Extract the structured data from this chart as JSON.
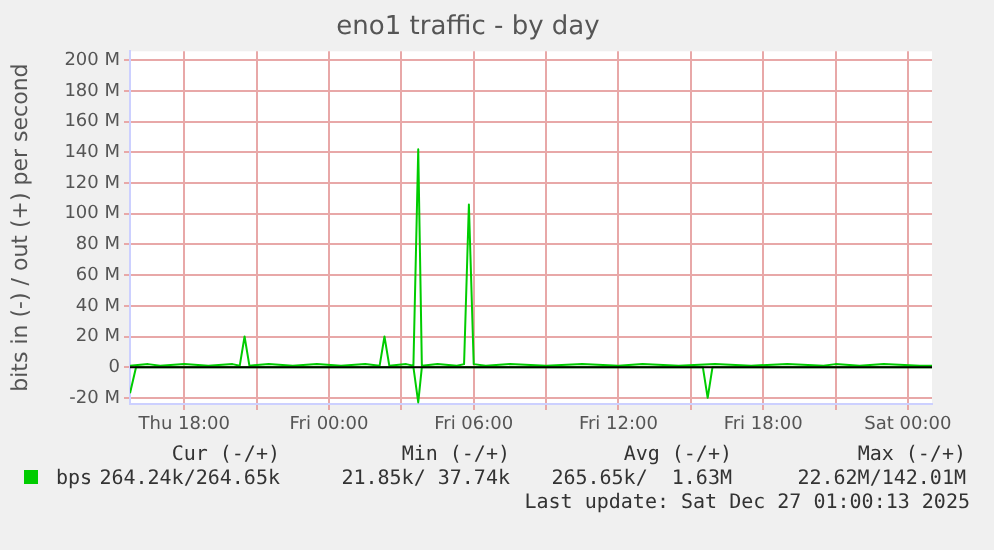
{
  "chart_data": {
    "type": "line",
    "title": "eno1 traffic - by day",
    "ylabel": "bits in (-) / out (+) per second",
    "xlim": [
      "2025-12-25T15:45",
      "2025-12-27T01:00"
    ],
    "xticks": [
      {
        "value": "2025-12-25T18:00",
        "label": "Thu 18:00"
      },
      {
        "value": "2025-12-25T21:00",
        "label": null
      },
      {
        "value": "2025-12-26T00:00",
        "label": "Fri 00:00"
      },
      {
        "value": "2025-12-26T03:00",
        "label": null
      },
      {
        "value": "2025-12-26T06:00",
        "label": "Fri 06:00"
      },
      {
        "value": "2025-12-26T09:00",
        "label": null
      },
      {
        "value": "2025-12-26T12:00",
        "label": "Fri 12:00"
      },
      {
        "value": "2025-12-26T15:00",
        "label": null
      },
      {
        "value": "2025-12-26T18:00",
        "label": "Fri 18:00"
      },
      {
        "value": "2025-12-26T21:00",
        "label": null
      },
      {
        "value": "2025-12-27T00:00",
        "label": "Sat 00:00"
      }
    ],
    "ylim": [
      -24,
      206
    ],
    "yticks": [
      {
        "value": -20,
        "label": "-20 M"
      },
      {
        "value": 0,
        "label": "0"
      },
      {
        "value": 20,
        "label": "20 M"
      },
      {
        "value": 40,
        "label": "40 M"
      },
      {
        "value": 60,
        "label": "60 M"
      },
      {
        "value": 80,
        "label": "80 M"
      },
      {
        "value": 100,
        "label": "100 M"
      },
      {
        "value": 120,
        "label": "120 M"
      },
      {
        "value": 140,
        "label": "140 M"
      },
      {
        "value": 160,
        "label": "160 M"
      },
      {
        "value": 180,
        "label": "180 M"
      },
      {
        "value": 200,
        "label": "200 M"
      }
    ],
    "grid": true,
    "legend": "bottom",
    "marker": "none",
    "line_style": "solid",
    "ref_lines": [
      {
        "axis": "y",
        "value": 0,
        "color": "#000000"
      }
    ],
    "series": [
      {
        "name": "bps",
        "color": "#00cc00",
        "x": [
          "2025-12-25T15:45",
          "2025-12-25T16:30",
          "2025-12-25T17:00",
          "2025-12-25T18:00",
          "2025-12-25T19:00",
          "2025-12-25T20:00",
          "2025-12-25T20:18",
          "2025-12-25T20:30",
          "2025-12-25T20:42",
          "2025-12-25T21:30",
          "2025-12-25T22:30",
          "2025-12-25T23:30",
          "2025-12-26T00:30",
          "2025-12-26T01:30",
          "2025-12-26T02:06",
          "2025-12-26T02:18",
          "2025-12-26T02:30",
          "2025-12-26T03:12",
          "2025-12-26T03:30",
          "2025-12-26T03:42",
          "2025-12-26T03:51",
          "2025-12-26T04:30",
          "2025-12-26T05:18",
          "2025-12-26T05:36",
          "2025-12-26T05:48",
          "2025-12-26T06:00",
          "2025-12-26T06:30",
          "2025-12-26T07:30",
          "2025-12-26T09:00",
          "2025-12-26T10:30",
          "2025-12-26T12:00",
          "2025-12-26T13:00",
          "2025-12-26T14:30",
          "2025-12-26T16:00",
          "2025-12-26T17:30",
          "2025-12-26T19:00",
          "2025-12-26T20:30",
          "2025-12-26T21:00",
          "2025-12-26T22:00",
          "2025-12-26T23:00",
          "2025-12-27T00:30",
          "2025-12-27T01:00"
        ],
        "values": [
          1,
          2,
          1,
          2,
          1,
          2,
          1,
          20,
          1,
          2,
          1,
          2,
          1,
          2,
          1,
          20,
          1,
          2,
          1,
          142,
          1,
          2,
          1,
          2,
          106,
          2,
          1,
          2,
          1,
          2,
          1,
          2,
          1,
          2,
          1,
          2,
          1,
          2,
          1,
          2,
          1,
          1
        ]
      },
      {
        "color": "#00cc00",
        "x": [
          "2025-12-25T15:45",
          "2025-12-25T16:00",
          "2025-12-26T03:30",
          "2025-12-26T03:42",
          "2025-12-26T03:51",
          "2025-12-26T15:30",
          "2025-12-26T15:42",
          "2025-12-26T15:54",
          "2025-12-27T01:00"
        ],
        "values": [
          -17,
          0,
          0,
          -23,
          0,
          0,
          -20,
          0,
          0
        ]
      }
    ],
    "annotations": [
      "Cur (-/+)",
      "Min (-/+)",
      "Avg (-/+)",
      "Max (-/+)",
      "264.24k/264.65k",
      "21.85k/ 37.74k",
      "265.65k/  1.63M",
      "22.62M/142.01M",
      "Last update: Sat Dec 27 01:00:13 2025"
    ]
  }
}
